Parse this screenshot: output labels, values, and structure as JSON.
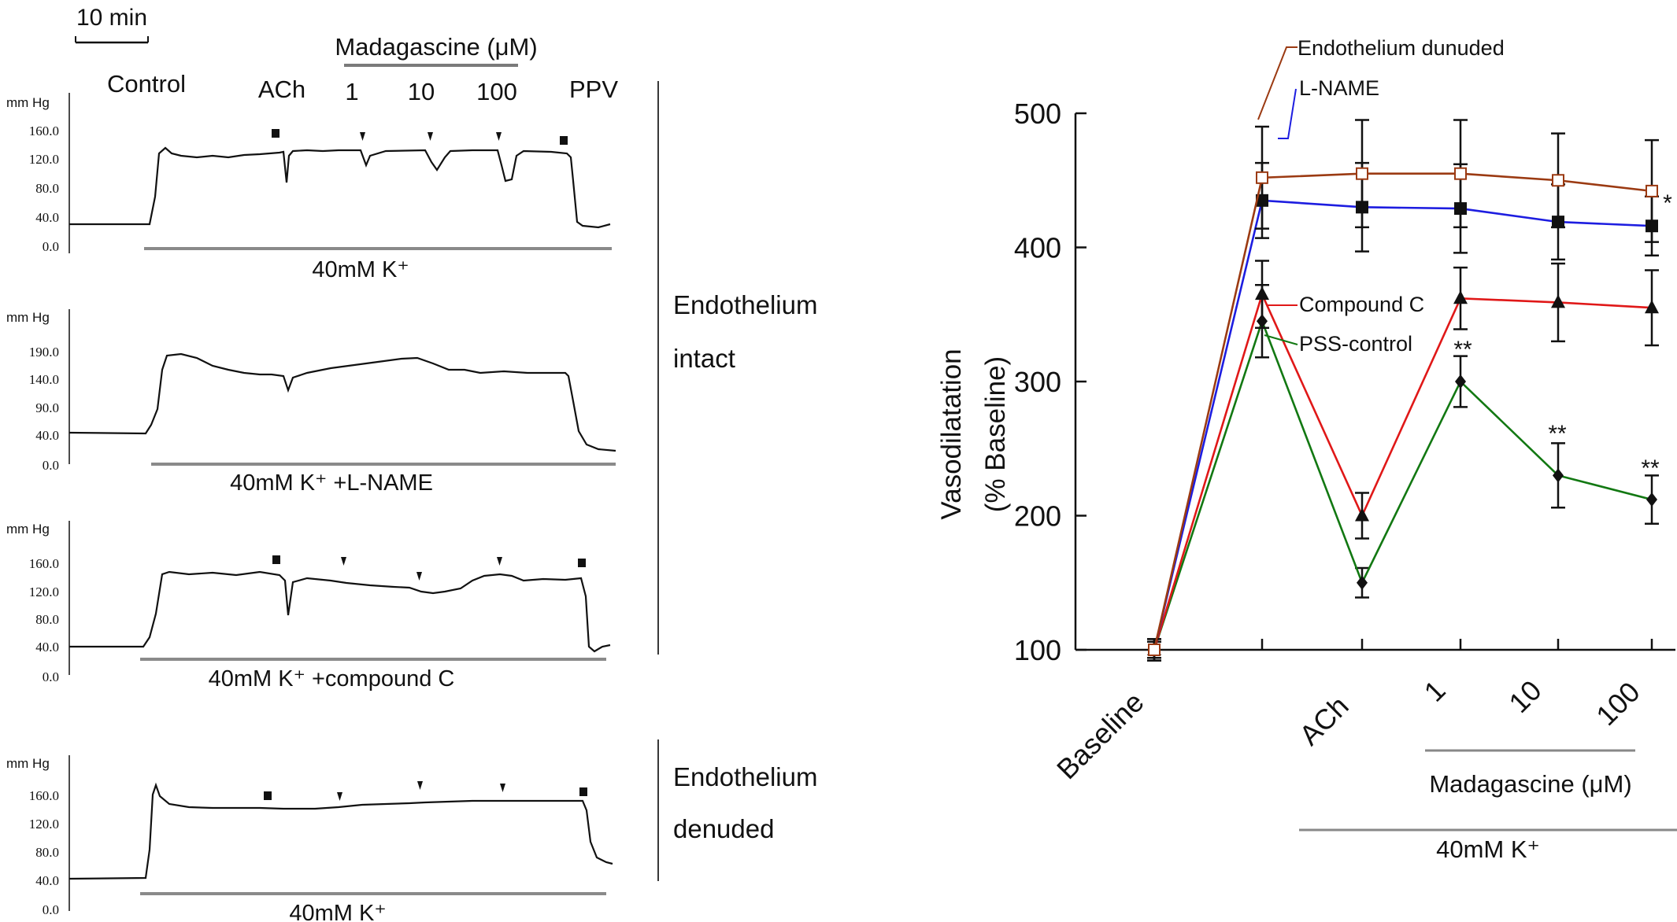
{
  "traces": {
    "scale_bar": "10 min",
    "madagascine_header": "Madagascine (μM)",
    "control_label": "Control",
    "ach_label": "ACh",
    "dose_labels": [
      "1",
      "10",
      "100"
    ],
    "ppv_label": "PPV",
    "unit": "mm Hg",
    "panels": [
      {
        "ticks": [
          "160.0",
          "120.0",
          "80.0",
          "40.0",
          "0.0"
        ],
        "condition": "40mM K⁺"
      },
      {
        "ticks": [
          "190.0",
          "140.0",
          "90.0",
          "40.0",
          "0.0"
        ],
        "condition": "40mM K⁺ +L-NAME"
      },
      {
        "ticks": [
          "160.0",
          "120.0",
          "80.0",
          "40.0",
          "0.0"
        ],
        "condition": "40mM K⁺ +compound C"
      },
      {
        "ticks": [
          "160.0",
          "120.0",
          "80.0",
          "40.0",
          "0.0"
        ],
        "condition": "40mM K⁺"
      }
    ],
    "group_intact": [
      "Endothelium",
      "intact"
    ],
    "group_denuded": [
      "Endothelium",
      "denuded"
    ]
  },
  "chart_data": {
    "type": "line",
    "ylabel_line1": "Vasodilatation",
    "ylabel_line2": "(% Baseline)",
    "ylim": [
      100,
      500
    ],
    "yticks": [
      "100",
      "200",
      "300",
      "400",
      "500"
    ],
    "categories": [
      "Baseline",
      "",
      "ACh",
      "1",
      "10",
      "100"
    ],
    "xgroup_label": "Madagascine (μM)",
    "condition_label": "40mM K⁺",
    "series": [
      {
        "name": "Endothelium dunuded",
        "color": "#9b3a12",
        "marker": "open-square",
        "values": [
          100,
          452,
          455,
          455,
          450,
          442
        ],
        "err": [
          8,
          38,
          40,
          40,
          35,
          38
        ]
      },
      {
        "name": "L-NAME",
        "color": "#1d1de0",
        "marker": "filled-square",
        "values": [
          100,
          435,
          430,
          429,
          419,
          416
        ],
        "err": [
          8,
          28,
          33,
          33,
          28,
          22
        ]
      },
      {
        "name": "Compound C",
        "color": "#e01818",
        "marker": "triangle",
        "values": [
          100,
          365,
          200,
          362,
          359,
          355
        ],
        "err": [
          6,
          25,
          17,
          23,
          29,
          28
        ]
      },
      {
        "name": "PSS-control",
        "color": "#127812",
        "marker": "diamond",
        "values": [
          100,
          345,
          150,
          300,
          230,
          212
        ],
        "err": [
          6,
          27,
          11,
          19,
          24,
          18
        ]
      }
    ],
    "annotations": [
      {
        "series": "L-NAME",
        "index": 5,
        "text": "*"
      },
      {
        "series": "PSS-control",
        "index": 3,
        "text": "**"
      },
      {
        "series": "PSS-control",
        "index": 4,
        "text": "**"
      },
      {
        "series": "PSS-control",
        "index": 5,
        "text": "**"
      }
    ]
  }
}
